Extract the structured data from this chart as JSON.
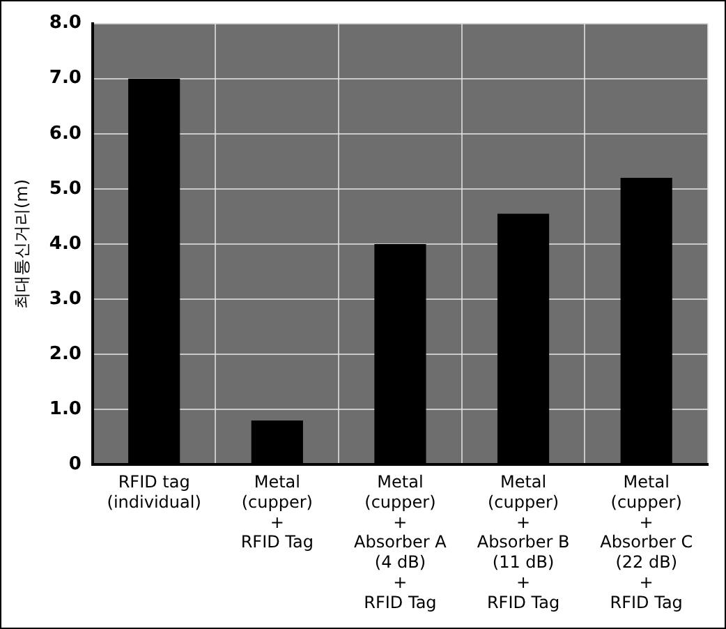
{
  "chart_data": {
    "type": "bar",
    "ylabel": "최대통신거리(m)",
    "categories": [
      "RFID tag\n(individual)",
      "Metal\n(cupper)\n+\nRFID Tag",
      "Metal\n(cupper)\n+\nAbsorber A\n(4 dB)\n+\nRFID Tag",
      "Metal\n(cupper)\n+\nAbsorber B\n(11 dB)\n+\nRFID Tag",
      "Metal\n(cupper)\n+\nAbsorber C\n(22 dB)\n+\nRFID Tag"
    ],
    "values": [
      7.0,
      0.8,
      4.0,
      4.55,
      5.2
    ],
    "color": "#000000",
    "ylim": [
      0,
      8
    ],
    "yticks": [
      0,
      {
        "value": 1,
        "label": "1.0"
      },
      {
        "value": 2,
        "label": "2.0"
      },
      {
        "value": 3,
        "label": "3.0"
      },
      {
        "value": 4,
        "label": "4.0"
      },
      {
        "value": 5,
        "label": "5.0"
      },
      {
        "value": 6,
        "label": "6.0"
      },
      {
        "value": 7,
        "label": "7.0"
      },
      {
        "value": 8,
        "label": "8.0"
      }
    ],
    "grid": true,
    "legend": false
  }
}
